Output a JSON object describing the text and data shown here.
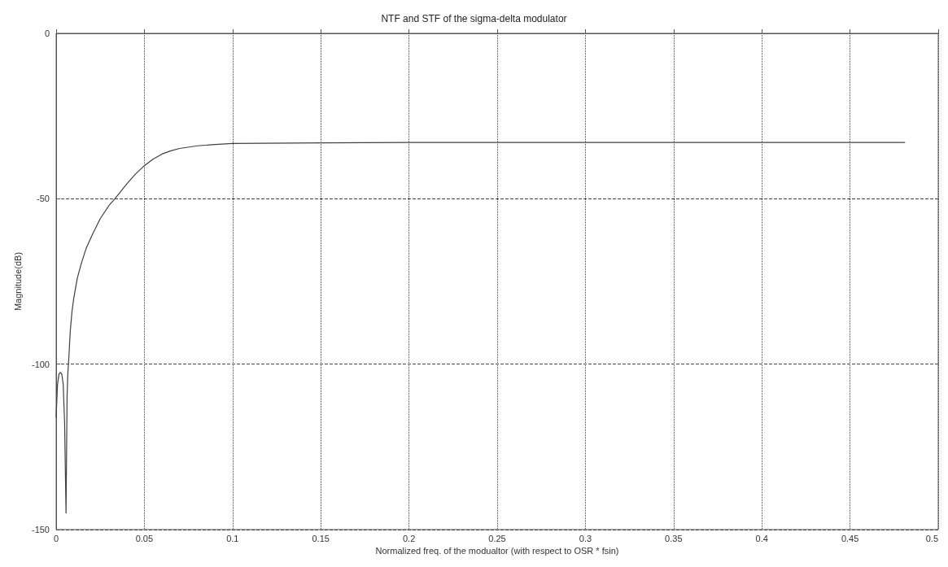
{
  "chart_data": {
    "type": "line",
    "title": "NTF and STF of the sigma-delta modulator",
    "xlabel": "Normalized freq. of the modualtor (with respect to OSR * fsin)",
    "ylabel": "Magnitude(dB)",
    "xlim": [
      0,
      0.5
    ],
    "xticks": [
      0,
      0.05,
      0.1,
      0.15,
      0.2,
      0.25,
      0.3,
      0.35,
      0.4,
      0.45,
      0.5
    ],
    "ylim": [
      -150,
      0
    ],
    "yticks": [
      -150,
      -100,
      -50,
      0
    ],
    "grid": true,
    "marker": "none",
    "line_style": "solid",
    "series": [
      {
        "color": "#404040",
        "x": [
          0,
          0.0008,
          0.0016,
          0.0024,
          0.0032,
          0.004,
          0.0048,
          0.0056,
          0.0062,
          0.0066,
          0.0072,
          0.008,
          0.009,
          0.01,
          0.012,
          0.0143,
          0.017,
          0.0204,
          0.025,
          0.03,
          0.0333,
          0.04,
          0.045,
          0.05,
          0.055,
          0.06,
          0.065,
          0.07,
          0.08,
          0.09,
          0.1,
          0.15,
          0.2,
          0.3,
          0.4,
          0.481
        ],
        "values": [
          -116,
          -106,
          -103,
          -102.5,
          -103,
          -106,
          -118,
          -145,
          -110,
          -103,
          -98,
          -90,
          -84,
          -80,
          -74,
          -69.5,
          -65,
          -61,
          -56,
          -52,
          -50,
          -45.5,
          -42.5,
          -40,
          -38,
          -36.5,
          -35.5,
          -34.8,
          -34,
          -33.6,
          -33.3,
          -33.1,
          -33,
          -33,
          -33,
          -33
        ]
      }
    ]
  }
}
